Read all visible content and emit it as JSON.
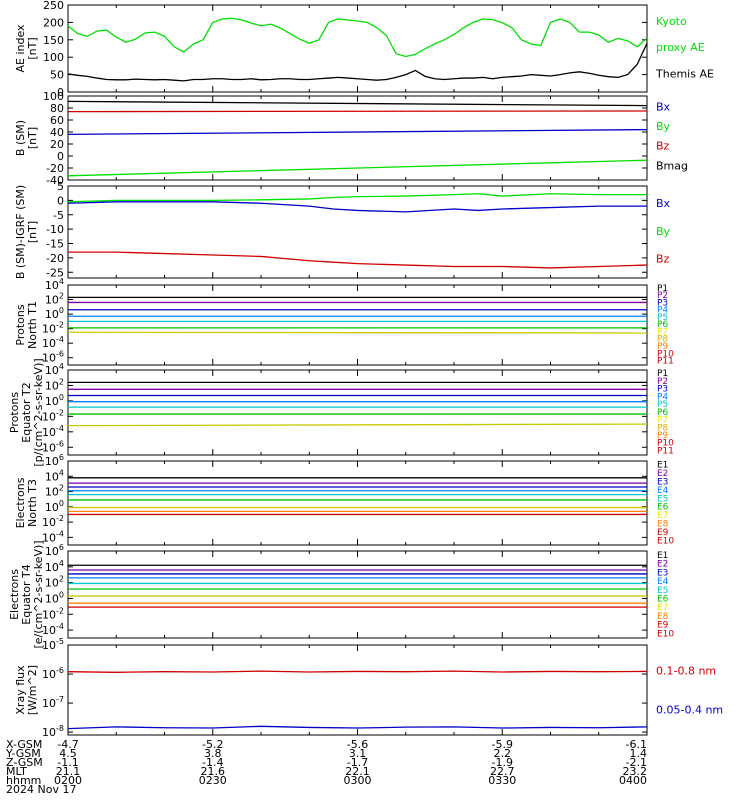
{
  "chart_data": [
    {
      "type": "line",
      "ylabel_lines": [
        "AE index",
        "[nT]"
      ],
      "ylim": [
        0,
        250
      ],
      "yticks": [
        "0",
        "50",
        "100",
        "150",
        "200",
        "250"
      ],
      "x": [
        0,
        2,
        4,
        6,
        8,
        10,
        12,
        14,
        16,
        18,
        20,
        22,
        24,
        26,
        28,
        30,
        32,
        34,
        36,
        38,
        40,
        42,
        44,
        46,
        48,
        50,
        52,
        54,
        56,
        58,
        60,
        62,
        64,
        66,
        68,
        70,
        72,
        74,
        76,
        78,
        80,
        82,
        84,
        86,
        88,
        90,
        92,
        94,
        96,
        98,
        100,
        102,
        104,
        106,
        108,
        110,
        112,
        114,
        116,
        118,
        120
      ],
      "series": [
        {
          "name": "Kyoto proxy AE",
          "color": "#00e000",
          "values": [
            190,
            168,
            160,
            175,
            178,
            158,
            143,
            152,
            170,
            172,
            160,
            130,
            115,
            138,
            150,
            200,
            210,
            212,
            207,
            198,
            190,
            195,
            184,
            168,
            152,
            140,
            150,
            200,
            210,
            207,
            204,
            200,
            185,
            162,
            110,
            102,
            108,
            124,
            138,
            150,
            165,
            185,
            200,
            210,
            208,
            199,
            185,
            150,
            138,
            134,
            200,
            210,
            200,
            172,
            172,
            164,
            143,
            154,
            147,
            130,
            155
          ]
        },
        {
          "name": "Themis AE",
          "color": "#000000",
          "values": [
            52,
            48,
            45,
            40,
            36,
            35,
            35,
            37,
            36,
            35,
            36,
            34,
            32,
            36,
            36,
            38,
            38,
            36,
            36,
            38,
            35,
            36,
            38,
            38,
            36,
            36,
            38,
            40,
            42,
            40,
            38,
            36,
            34,
            36,
            42,
            50,
            62,
            45,
            38,
            36,
            38,
            40,
            40,
            42,
            38,
            42,
            44,
            46,
            50,
            48,
            46,
            50,
            55,
            58,
            54,
            48,
            44,
            42,
            50,
            80,
            140
          ]
        }
      ]
    },
    {
      "type": "line",
      "ylabel_lines": [
        "B (SM)",
        "[nT]"
      ],
      "ylim": [
        -40,
        100
      ],
      "yticks": [
        "-40",
        "-20",
        "0",
        "20",
        "40",
        "60",
        "80",
        "100"
      ],
      "x": [
        0,
        120
      ],
      "series": [
        {
          "name": "Bx",
          "color": "#0000c8",
          "values": [
            36,
            44
          ]
        },
        {
          "name": "By",
          "color": "#00e000",
          "values": [
            -33,
            -7
          ]
        },
        {
          "name": "Bz",
          "color": "#d00000",
          "values": [
            74,
            75
          ]
        },
        {
          "name": "Bmag",
          "color": "#000000",
          "values": [
            91,
            84
          ]
        }
      ]
    },
    {
      "type": "line",
      "ylabel_lines": [
        "B (SM)-IGRF (SM)",
        "[nT]"
      ],
      "ylim": [
        -27,
        5
      ],
      "yticks": [
        "-25",
        "-20",
        "-15",
        "-10",
        "-5",
        "0",
        "5"
      ],
      "x": [
        0,
        10,
        20,
        30,
        40,
        50,
        55,
        60,
        70,
        80,
        85,
        90,
        100,
        110,
        120
      ],
      "series": [
        {
          "name": "Bx",
          "color": "#0000c8",
          "values": [
            -1,
            -0.5,
            -0.5,
            -0.5,
            -1,
            -2,
            -3,
            -3.5,
            -4,
            -3,
            -3.5,
            -3,
            -2.5,
            -2,
            -2
          ]
        },
        {
          "name": "By",
          "color": "#00e000",
          "values": [
            -0.5,
            0,
            0,
            0,
            0.2,
            0.5,
            1,
            1.3,
            1.5,
            2,
            2.3,
            1.5,
            2.3,
            2,
            2
          ]
        },
        {
          "name": "Bz",
          "color": "#d00000",
          "values": [
            -18,
            -18,
            -18.5,
            -19,
            -19.5,
            -21,
            -21.5,
            -22,
            -22.5,
            -23,
            -23,
            -23,
            -23.5,
            -23,
            -22.5
          ]
        }
      ]
    },
    {
      "type": "line",
      "ylabel_lines": [
        "Protons",
        "North T1"
      ],
      "log": true,
      "ylim_exp": [
        -7,
        4
      ],
      "yticks": [
        "10^4",
        "10^2",
        "10^0",
        "10^-2",
        "10^-4",
        "10^-6"
      ],
      "ytick_exps": [
        4,
        2,
        0,
        -2,
        -4,
        -6
      ],
      "legend": [
        "P1",
        "P2",
        "P3",
        "P4",
        "P5",
        "P6",
        "P7",
        "P8",
        "P9",
        "P10",
        "P11"
      ],
      "x": [
        0,
        120
      ],
      "series": [
        {
          "name": "P1",
          "color": "#000000",
          "values_exp": [
            2.3,
            2.3
          ]
        },
        {
          "name": "P2",
          "color": "#8000a0",
          "values_exp": [
            1.6,
            1.6
          ]
        },
        {
          "name": "P3",
          "color": "#0000c8",
          "values_exp": [
            0.6,
            0.6
          ]
        },
        {
          "name": "P4",
          "color": "#0080ff",
          "values_exp": [
            -0.3,
            -0.3
          ]
        },
        {
          "name": "P5",
          "color": "#00c8c8",
          "values_exp": [
            -1.0,
            -1.0
          ]
        },
        {
          "name": "P6",
          "color": "#00c000",
          "values_exp": [
            -1.9,
            -1.9
          ]
        },
        {
          "name": "P7",
          "color": "#c8c800",
          "values_exp": [
            -2.5,
            -2.6
          ]
        }
      ]
    },
    {
      "type": "line",
      "ylabel_lines": [
        "Protons",
        "Equator T2",
        "[p/(cm^2-s-sr-keV)]"
      ],
      "log": true,
      "ylim_exp": [
        -7,
        4
      ],
      "yticks": [
        "10^4",
        "10^2",
        "10^0",
        "10^-2",
        "10^-4",
        "10^-6"
      ],
      "ytick_exps": [
        4,
        2,
        0,
        -2,
        -4,
        -6
      ],
      "legend": [
        "P1",
        "P2",
        "P3",
        "P4",
        "P5",
        "P6",
        "P7",
        "P8",
        "P9",
        "P10",
        "P11"
      ],
      "x": [
        0,
        120
      ],
      "series": [
        {
          "name": "P1",
          "color": "#000000",
          "values_exp": [
            2.4,
            2.4
          ]
        },
        {
          "name": "P2",
          "color": "#8000a0",
          "values_exp": [
            1.5,
            1.5
          ]
        },
        {
          "name": "P3",
          "color": "#0000c8",
          "values_exp": [
            0.7,
            0.7
          ]
        },
        {
          "name": "P4",
          "color": "#0080ff",
          "values_exp": [
            -0.1,
            -0.1
          ]
        },
        {
          "name": "P5",
          "color": "#00c8c8",
          "values_exp": [
            -0.8,
            -0.8
          ]
        },
        {
          "name": "P6",
          "color": "#00c000",
          "values_exp": [
            -1.7,
            -1.7
          ]
        },
        {
          "name": "P7",
          "color": "#c8c800",
          "values_exp": [
            -3.2,
            -3.0
          ]
        }
      ]
    },
    {
      "type": "line",
      "ylabel_lines": [
        "Electrons",
        "North T3"
      ],
      "log": true,
      "ylim_exp": [
        -5,
        6
      ],
      "yticks": [
        "10^6",
        "10^4",
        "10^2",
        "10^0",
        "10^-2",
        "10^-4"
      ],
      "ytick_exps": [
        6,
        4,
        2,
        0,
        -2,
        -4
      ],
      "legend": [
        "E1",
        "E2",
        "E3",
        "E4",
        "E5",
        "E6",
        "E7",
        "E8",
        "E9",
        "E10"
      ],
      "x": [
        0,
        120
      ],
      "series": [
        {
          "name": "E1",
          "color": "#000000",
          "values_exp": [
            3.8,
            3.8
          ]
        },
        {
          "name": "E2",
          "color": "#8000a0",
          "values_exp": [
            3.1,
            3.1
          ]
        },
        {
          "name": "E3",
          "color": "#0000c8",
          "values_exp": [
            2.6,
            2.6
          ]
        },
        {
          "name": "E4",
          "color": "#0080ff",
          "values_exp": [
            2.1,
            2.1
          ]
        },
        {
          "name": "E5",
          "color": "#00c8c8",
          "values_exp": [
            1.6,
            1.6
          ]
        },
        {
          "name": "E6",
          "color": "#00c000",
          "values_exp": [
            0.9,
            0.9
          ]
        },
        {
          "name": "E7",
          "color": "#c8c800",
          "values_exp": [
            -0.1,
            -0.1
          ]
        },
        {
          "name": "E8",
          "color": "#ff8000",
          "values_exp": [
            -0.6,
            -0.6
          ]
        },
        {
          "name": "E9",
          "color": "#d00000",
          "values_exp": [
            -1.0,
            -1.0
          ]
        }
      ]
    },
    {
      "type": "line",
      "ylabel_lines": [
        "Electrons",
        "Equator T4",
        "[e/(cm^2-s-sr-keV)]"
      ],
      "log": true,
      "ylim_exp": [
        -5,
        6
      ],
      "yticks": [
        "10^6",
        "10^4",
        "10^2",
        "10^0",
        "10^-2",
        "10^-4"
      ],
      "ytick_exps": [
        6,
        4,
        2,
        0,
        -2,
        -4
      ],
      "legend": [
        "E1",
        "E2",
        "E3",
        "E4",
        "E5",
        "E6",
        "E7",
        "E8",
        "E9",
        "E10"
      ],
      "x": [
        0,
        120
      ],
      "series": [
        {
          "name": "E1",
          "color": "#000000",
          "values_exp": [
            4.2,
            4.2
          ]
        },
        {
          "name": "E2",
          "color": "#8000a0",
          "values_exp": [
            3.6,
            3.6
          ]
        },
        {
          "name": "E3",
          "color": "#0000c8",
          "values_exp": [
            3.1,
            3.1
          ]
        },
        {
          "name": "E4",
          "color": "#0080ff",
          "values_exp": [
            2.6,
            2.6
          ]
        },
        {
          "name": "E5",
          "color": "#00c8c8",
          "values_exp": [
            1.9,
            1.9
          ]
        },
        {
          "name": "E6",
          "color": "#00c000",
          "values_exp": [
            1.2,
            1.2
          ]
        },
        {
          "name": "E7",
          "color": "#c8c800",
          "values_exp": [
            0.3,
            0.3
          ]
        },
        {
          "name": "E8",
          "color": "#ff8000",
          "values_exp": [
            -0.6,
            -0.6
          ]
        },
        {
          "name": "E9",
          "color": "#d00000",
          "values_exp": [
            -1.1,
            -1.1
          ]
        }
      ]
    },
    {
      "type": "line",
      "ylabel_lines": [
        "Xray flux",
        "[W/m^2]"
      ],
      "log": true,
      "ylim_exp": [
        -8.1,
        -5.0
      ],
      "yticks": [
        "10^-5",
        "10^-6",
        "10^-7",
        "10^-8"
      ],
      "ytick_exps": [
        -5,
        -6,
        -7,
        -8
      ],
      "x": [
        0,
        10,
        20,
        30,
        40,
        50,
        60,
        70,
        80,
        90,
        100,
        110,
        120
      ],
      "series": [
        {
          "name": "0.1-0.8 nm",
          "color": "#d00000",
          "values_exp": [
            -5.92,
            -5.94,
            -5.92,
            -5.93,
            -5.9,
            -5.93,
            -5.91,
            -5.92,
            -5.9,
            -5.93,
            -5.91,
            -5.92,
            -5.91
          ]
        },
        {
          "name": "0.05-0.4 nm",
          "color": "#0000c8",
          "values_exp": [
            -7.88,
            -7.82,
            -7.85,
            -7.86,
            -7.8,
            -7.84,
            -7.86,
            -7.83,
            -7.82,
            -7.86,
            -7.84,
            -7.85,
            -7.82
          ]
        }
      ]
    }
  ],
  "legends": [
    [
      {
        "text": "Kyoto",
        "color": "#00e000"
      },
      {
        "text": "proxy AE",
        "color": "#00e000"
      },
      {
        "text": "Themis AE",
        "color": "#000000"
      }
    ],
    [
      {
        "text": "Bx",
        "color": "#0000c8"
      },
      {
        "text": "By",
        "color": "#00e000"
      },
      {
        "text": "Bz",
        "color": "#d00000"
      },
      {
        "text": "Bmag",
        "color": "#000000"
      }
    ],
    [
      {
        "text": "Bx",
        "color": "#0000c8"
      },
      {
        "text": "By",
        "color": "#00e000"
      },
      {
        "text": "Bz",
        "color": "#d00000"
      }
    ],
    null,
    null,
    null,
    null,
    [
      {
        "text": "0.1-0.8 nm",
        "color": "#d00000"
      },
      {
        "text": "0.05-0.4 nm",
        "color": "#0000c8"
      }
    ]
  ],
  "p_legend_colors": [
    "#000000",
    "#8000a0",
    "#0000c8",
    "#0080ff",
    "#00c8c8",
    "#00c000",
    "#e8e800",
    "#e0b000",
    "#ff8000",
    "#d00000",
    "#c00000"
  ],
  "e_legend_colors": [
    "#000000",
    "#8000a0",
    "#0000c8",
    "#0080ff",
    "#00c8c8",
    "#00c000",
    "#e8e800",
    "#ff8000",
    "#d00000",
    "#c00000"
  ],
  "bottom": {
    "row_labels": [
      "X-GSM",
      "Y-GSM",
      "Z-GSM",
      "MLT",
      "hhmm",
      "2024 Nov 17"
    ],
    "columns": [
      [
        "-4.7",
        "4.5",
        "-1.1",
        "21.1",
        "0200"
      ],
      [
        "-5.2",
        "3.8",
        "-1.4",
        "21.6",
        "0230"
      ],
      [
        "-5.6",
        "3.1",
        "-1.7",
        "22.1",
        "0300"
      ],
      [
        "-5.9",
        "2.2",
        "-1.9",
        "22.7",
        "0330"
      ],
      [
        "-6.1",
        "1.4",
        "-2.1",
        "23.2",
        "0400"
      ]
    ]
  }
}
